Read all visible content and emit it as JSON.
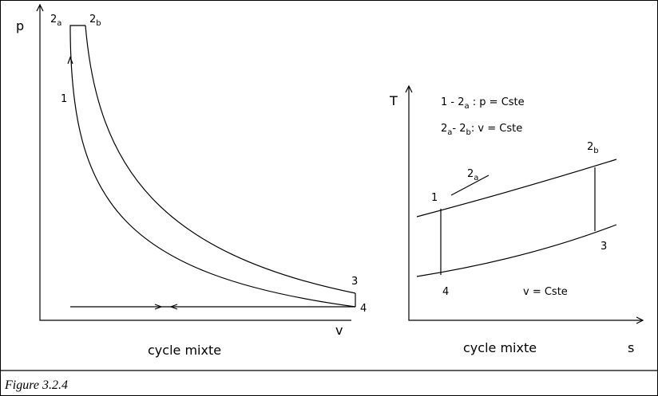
{
  "left": {
    "axis_y": "p",
    "axis_x": "v",
    "title": "cycle mixte",
    "points": {
      "p2a": [
        "2",
        "a"
      ],
      "p2b": [
        "2",
        "b"
      ],
      "p1": "1",
      "p3": "3",
      "p4": "4"
    }
  },
  "right": {
    "axis_y": "T",
    "axis_x": "s",
    "title": "cycle mixte",
    "legend": [
      [
        "1 - 2",
        "a",
        " :  p = Cste"
      ],
      [
        "2",
        "a",
        "- 2",
        "b",
        ":  v = Cste"
      ]
    ],
    "points": {
      "p2b": [
        "2",
        "b"
      ],
      "p2a": [
        "2",
        "a"
      ],
      "p1": "1",
      "p3": "3",
      "p4": "4"
    },
    "note": "v = Cste"
  },
  "caption": "Figure 3.2.4"
}
